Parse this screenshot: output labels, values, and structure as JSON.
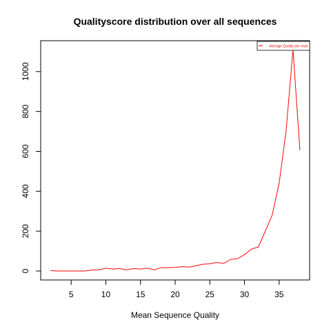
{
  "chart_data": {
    "type": "line",
    "title": "Qualityscore distribution over all sequences",
    "xlabel": "Mean Sequence Quality",
    "ylabel": "",
    "xlim": [
      0.6,
      39.4
    ],
    "ylim": [
      -45,
      1155
    ],
    "x_ticks": [
      5,
      10,
      15,
      20,
      25,
      30,
      35
    ],
    "y_ticks": [
      0,
      200,
      400,
      600,
      800,
      1000
    ],
    "grid": false,
    "legend_position": "top-right",
    "series": [
      {
        "name": "Average Quality per read",
        "color": "#ff0000",
        "x": [
          2,
          3,
          4,
          5,
          6,
          7,
          8,
          9,
          10,
          11,
          12,
          13,
          14,
          15,
          16,
          17,
          18,
          19,
          20,
          21,
          22,
          23,
          24,
          25,
          26,
          27,
          28,
          29,
          30,
          31,
          32,
          33,
          34,
          35,
          36,
          37,
          38
        ],
        "values": [
          2,
          0,
          0,
          0,
          0,
          0,
          5,
          6,
          14,
          10,
          12,
          6,
          12,
          10,
          14,
          6,
          17,
          17,
          18,
          22,
          20,
          26,
          34,
          36,
          43,
          38,
          58,
          62,
          82,
          110,
          120,
          200,
          280,
          440,
          700,
          1110,
          605
        ]
      }
    ]
  }
}
